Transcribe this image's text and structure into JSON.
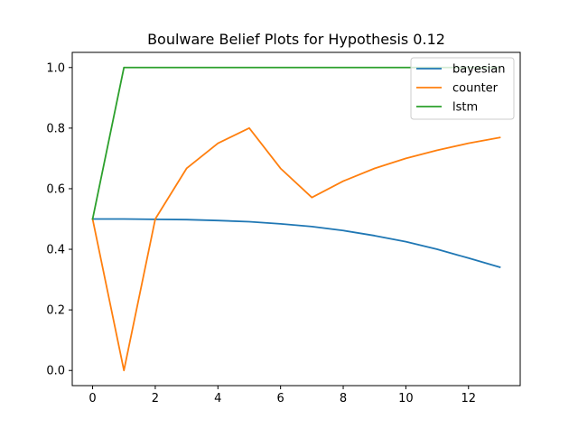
{
  "chart_data": {
    "type": "line",
    "title": "Boulware Belief Plots for Hypothesis 0.12",
    "xlabel": "",
    "ylabel": "",
    "xlim": [
      -0.65,
      13.65
    ],
    "ylim": [
      -0.05,
      1.05
    ],
    "x": [
      0,
      1,
      2,
      3,
      4,
      5,
      6,
      7,
      8,
      9,
      10,
      11,
      12,
      13
    ],
    "xticks": [
      0,
      2,
      4,
      6,
      8,
      10,
      12
    ],
    "yticks": [
      0.0,
      0.2,
      0.4,
      0.6,
      0.8,
      1.0
    ],
    "xtick_labels": [
      "0",
      "2",
      "4",
      "6",
      "8",
      "10",
      "12"
    ],
    "ytick_labels": [
      "0.0",
      "0.2",
      "0.4",
      "0.6",
      "0.8",
      "1.0"
    ],
    "grid": false,
    "legend_position": "top-right",
    "series": [
      {
        "name": "bayesian",
        "color": "#1f77b4",
        "values": [
          0.5,
          0.5,
          0.499,
          0.498,
          0.495,
          0.491,
          0.484,
          0.475,
          0.462,
          0.445,
          0.425,
          0.4,
          0.371,
          0.341
        ]
      },
      {
        "name": "counter",
        "color": "#ff7f0e",
        "values": [
          0.5,
          0.0,
          0.5,
          0.667,
          0.75,
          0.8,
          0.667,
          0.571,
          0.625,
          0.667,
          0.7,
          0.727,
          0.75,
          0.769
        ]
      },
      {
        "name": "lstm",
        "color": "#2ca02c",
        "values": [
          0.5,
          1.0,
          1.0,
          1.0,
          1.0,
          1.0,
          1.0,
          1.0,
          1.0,
          1.0,
          1.0,
          1.0,
          1.0,
          1.0
        ]
      }
    ]
  }
}
